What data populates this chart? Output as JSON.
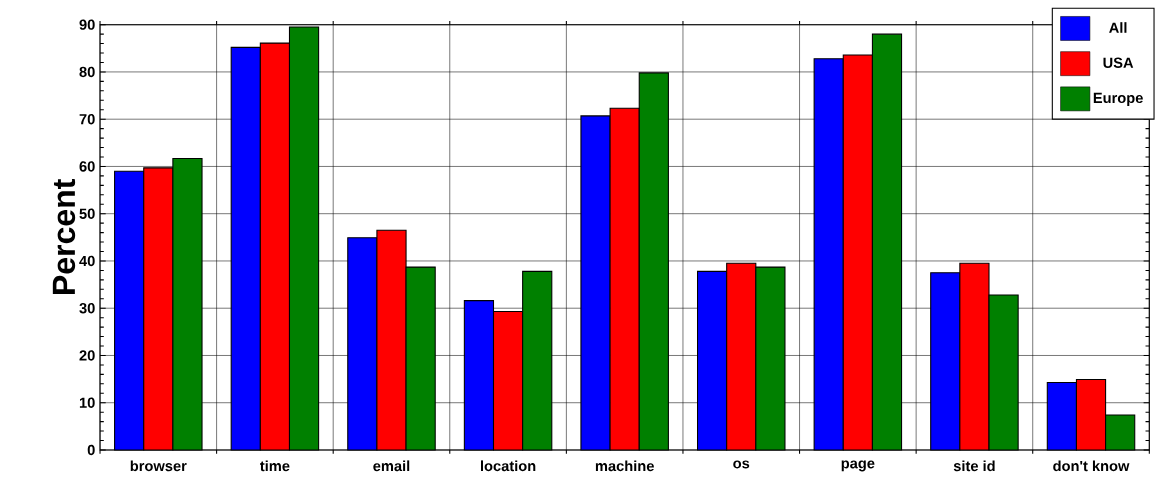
{
  "chart_data": {
    "type": "bar",
    "ylabel": "Percent",
    "categories": [
      "browser",
      "time",
      "email",
      "location",
      "machine",
      "os",
      "page",
      "site id",
      "don't know"
    ],
    "series": [
      {
        "name": "All",
        "color": "#0000ff",
        "values": [
          59.0,
          85.2,
          44.9,
          31.6,
          70.7,
          37.8,
          82.8,
          37.5,
          14.3
        ]
      },
      {
        "name": "USA",
        "color": "#ff0000",
        "values": [
          59.7,
          86.1,
          46.5,
          29.3,
          72.3,
          39.5,
          83.6,
          39.5,
          14.9
        ]
      },
      {
        "name": "Europe",
        "color": "#008000",
        "values": [
          61.7,
          89.5,
          38.7,
          37.8,
          79.8,
          38.7,
          88.0,
          32.8,
          7.4
        ]
      }
    ],
    "ylim": [
      0,
      90
    ],
    "yticks": [
      0,
      10,
      20,
      30,
      40,
      50,
      60,
      70,
      80,
      90
    ],
    "grid": true,
    "legend": "top right"
  }
}
